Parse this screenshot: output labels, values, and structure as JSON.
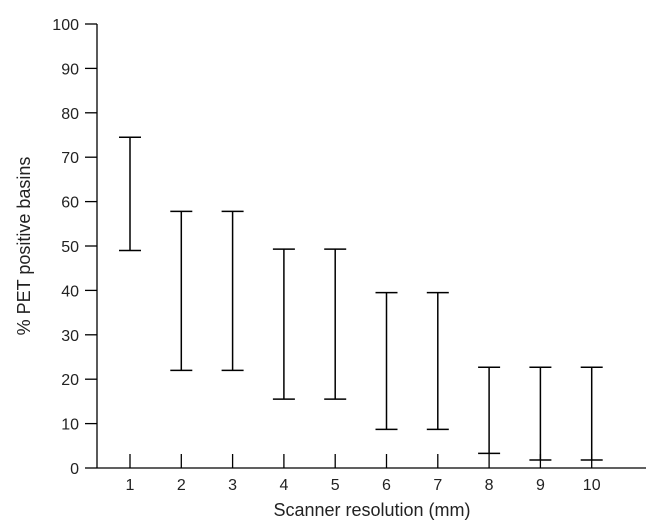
{
  "chart_data": {
    "type": "errorbar",
    "title": "",
    "xlabel": "Scanner resolution (mm)",
    "ylabel": "% PET positive basins",
    "categories": [
      "1",
      "2",
      "3",
      "4",
      "5",
      "6",
      "7",
      "8",
      "9",
      "10"
    ],
    "x": [
      1,
      2,
      3,
      4,
      5,
      6,
      7,
      8,
      9,
      10
    ],
    "low": [
      49,
      22,
      22,
      15.5,
      15.5,
      8.7,
      8.7,
      3.3,
      1.8,
      1.8
    ],
    "high": [
      74.5,
      57.8,
      57.8,
      49.3,
      49.3,
      39.5,
      39.5,
      22.7,
      22.7,
      22.7
    ],
    "ylim": [
      0,
      100
    ],
    "yticks": [
      "0",
      "10",
      "20",
      "30",
      "40",
      "50",
      "60",
      "70",
      "80",
      "90",
      "100"
    ],
    "grid": false,
    "legend": false,
    "color": "#000000"
  }
}
